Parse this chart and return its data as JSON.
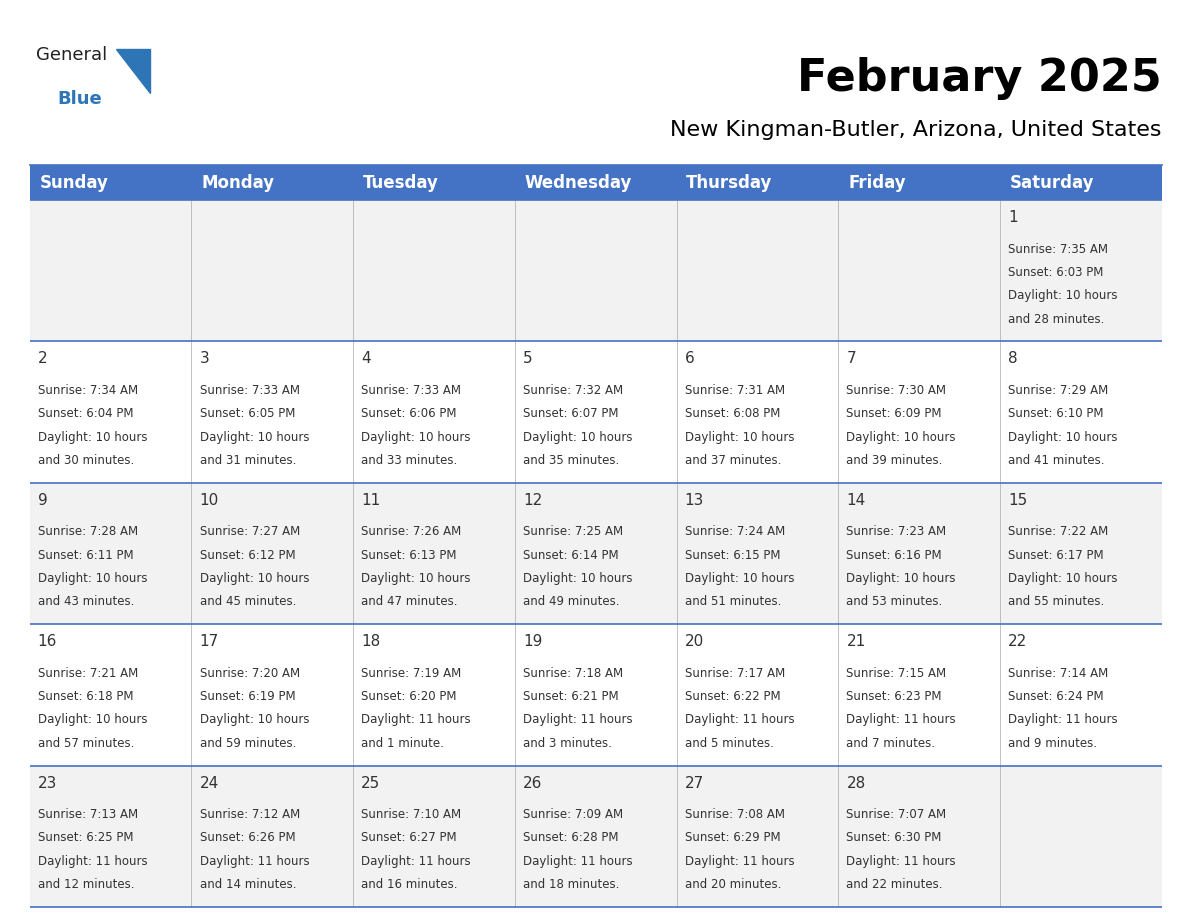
{
  "title": "February 2025",
  "subtitle": "New Kingman-Butler, Arizona, United States",
  "header_bg": "#4472C4",
  "header_text_color": "#FFFFFF",
  "days_of_week": [
    "Sunday",
    "Monday",
    "Tuesday",
    "Wednesday",
    "Thursday",
    "Friday",
    "Saturday"
  ],
  "cell_bg_week1": "#F2F2F2",
  "cell_bg_week2": "#FFFFFF",
  "cell_bg_week3": "#F2F2F2",
  "cell_bg_week4": "#FFFFFF",
  "cell_bg_week5": "#F2F2F2",
  "line_color": "#4472C4",
  "title_fontsize": 32,
  "subtitle_fontsize": 16,
  "header_fontsize": 12,
  "day_num_fontsize": 11,
  "info_fontsize": 8.5,
  "logo_general_color": "#222222",
  "logo_blue_color": "#2E75B6",
  "logo_triangle_color": "#2E75B6",
  "calendar": [
    [
      null,
      null,
      null,
      null,
      null,
      null,
      {
        "day": "1",
        "sunrise": "7:35 AM",
        "sunset": "6:03 PM",
        "daylight_h": "10 hours",
        "daylight_m": "and 28 minutes."
      }
    ],
    [
      {
        "day": "2",
        "sunrise": "7:34 AM",
        "sunset": "6:04 PM",
        "daylight_h": "10 hours",
        "daylight_m": "and 30 minutes."
      },
      {
        "day": "3",
        "sunrise": "7:33 AM",
        "sunset": "6:05 PM",
        "daylight_h": "10 hours",
        "daylight_m": "and 31 minutes."
      },
      {
        "day": "4",
        "sunrise": "7:33 AM",
        "sunset": "6:06 PM",
        "daylight_h": "10 hours",
        "daylight_m": "and 33 minutes."
      },
      {
        "day": "5",
        "sunrise": "7:32 AM",
        "sunset": "6:07 PM",
        "daylight_h": "10 hours",
        "daylight_m": "and 35 minutes."
      },
      {
        "day": "6",
        "sunrise": "7:31 AM",
        "sunset": "6:08 PM",
        "daylight_h": "10 hours",
        "daylight_m": "and 37 minutes."
      },
      {
        "day": "7",
        "sunrise": "7:30 AM",
        "sunset": "6:09 PM",
        "daylight_h": "10 hours",
        "daylight_m": "and 39 minutes."
      },
      {
        "day": "8",
        "sunrise": "7:29 AM",
        "sunset": "6:10 PM",
        "daylight_h": "10 hours",
        "daylight_m": "and 41 minutes."
      }
    ],
    [
      {
        "day": "9",
        "sunrise": "7:28 AM",
        "sunset": "6:11 PM",
        "daylight_h": "10 hours",
        "daylight_m": "and 43 minutes."
      },
      {
        "day": "10",
        "sunrise": "7:27 AM",
        "sunset": "6:12 PM",
        "daylight_h": "10 hours",
        "daylight_m": "and 45 minutes."
      },
      {
        "day": "11",
        "sunrise": "7:26 AM",
        "sunset": "6:13 PM",
        "daylight_h": "10 hours",
        "daylight_m": "and 47 minutes."
      },
      {
        "day": "12",
        "sunrise": "7:25 AM",
        "sunset": "6:14 PM",
        "daylight_h": "10 hours",
        "daylight_m": "and 49 minutes."
      },
      {
        "day": "13",
        "sunrise": "7:24 AM",
        "sunset": "6:15 PM",
        "daylight_h": "10 hours",
        "daylight_m": "and 51 minutes."
      },
      {
        "day": "14",
        "sunrise": "7:23 AM",
        "sunset": "6:16 PM",
        "daylight_h": "10 hours",
        "daylight_m": "and 53 minutes."
      },
      {
        "day": "15",
        "sunrise": "7:22 AM",
        "sunset": "6:17 PM",
        "daylight_h": "10 hours",
        "daylight_m": "and 55 minutes."
      }
    ],
    [
      {
        "day": "16",
        "sunrise": "7:21 AM",
        "sunset": "6:18 PM",
        "daylight_h": "10 hours",
        "daylight_m": "and 57 minutes."
      },
      {
        "day": "17",
        "sunrise": "7:20 AM",
        "sunset": "6:19 PM",
        "daylight_h": "10 hours",
        "daylight_m": "and 59 minutes."
      },
      {
        "day": "18",
        "sunrise": "7:19 AM",
        "sunset": "6:20 PM",
        "daylight_h": "11 hours",
        "daylight_m": "and 1 minute."
      },
      {
        "day": "19",
        "sunrise": "7:18 AM",
        "sunset": "6:21 PM",
        "daylight_h": "11 hours",
        "daylight_m": "and 3 minutes."
      },
      {
        "day": "20",
        "sunrise": "7:17 AM",
        "sunset": "6:22 PM",
        "daylight_h": "11 hours",
        "daylight_m": "and 5 minutes."
      },
      {
        "day": "21",
        "sunrise": "7:15 AM",
        "sunset": "6:23 PM",
        "daylight_h": "11 hours",
        "daylight_m": "and 7 minutes."
      },
      {
        "day": "22",
        "sunrise": "7:14 AM",
        "sunset": "6:24 PM",
        "daylight_h": "11 hours",
        "daylight_m": "and 9 minutes."
      }
    ],
    [
      {
        "day": "23",
        "sunrise": "7:13 AM",
        "sunset": "6:25 PM",
        "daylight_h": "11 hours",
        "daylight_m": "and 12 minutes."
      },
      {
        "day": "24",
        "sunrise": "7:12 AM",
        "sunset": "6:26 PM",
        "daylight_h": "11 hours",
        "daylight_m": "and 14 minutes."
      },
      {
        "day": "25",
        "sunrise": "7:10 AM",
        "sunset": "6:27 PM",
        "daylight_h": "11 hours",
        "daylight_m": "and 16 minutes."
      },
      {
        "day": "26",
        "sunrise": "7:09 AM",
        "sunset": "6:28 PM",
        "daylight_h": "11 hours",
        "daylight_m": "and 18 minutes."
      },
      {
        "day": "27",
        "sunrise": "7:08 AM",
        "sunset": "6:29 PM",
        "daylight_h": "11 hours",
        "daylight_m": "and 20 minutes."
      },
      {
        "day": "28",
        "sunrise": "7:07 AM",
        "sunset": "6:30 PM",
        "daylight_h": "11 hours",
        "daylight_m": "and 22 minutes."
      },
      null
    ]
  ]
}
